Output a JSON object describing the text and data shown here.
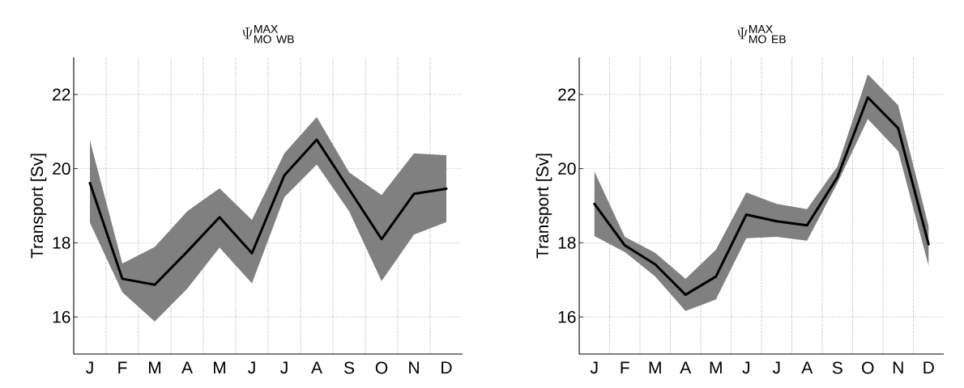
{
  "chart_data": [
    {
      "type": "line",
      "title": "\\Psi^{\\mathsf{MAX}}_{\\mathsf{MO\\ WB}}",
      "ylabel": "Transport [Sv]",
      "categories": [
        "J",
        "F",
        "M",
        "A",
        "M",
        "J",
        "J",
        "A",
        "S",
        "O",
        "N",
        "D"
      ],
      "series": [
        {
          "color": "#000000",
          "values": [
            19.61,
            17.03,
            16.87,
            17.76,
            18.69,
            17.72,
            19.82,
            20.78,
            19.44,
            18.1,
            19.32,
            19.46
          ],
          "lower": [
            18.54,
            16.67,
            15.88,
            16.76,
            17.87,
            16.91,
            19.23,
            20.11,
            18.85,
            16.97,
            18.22,
            18.56
          ],
          "upper": [
            20.76,
            17.44,
            17.89,
            18.85,
            19.47,
            18.62,
            20.41,
            21.39,
            19.9,
            19.29,
            20.41,
            20.36
          ]
        }
      ],
      "ylim": [
        15,
        23
      ],
      "yticks": [
        16,
        18,
        20,
        22
      ],
      "grid": true,
      "line_style": "solid",
      "marker": "none"
    },
    {
      "type": "line",
      "title": "\\Psi^{\\mathsf{MAX}}_{\\mathsf{MO\\ EB}}",
      "ylabel": "Transport [Sv]",
      "categories": [
        "J",
        "F",
        "M",
        "A",
        "M",
        "J",
        "J",
        "A",
        "S",
        "O",
        "N",
        "D"
      ],
      "series": [
        {
          "color": "#000000",
          "values": [
            19.05,
            17.93,
            17.42,
            16.6,
            17.09,
            18.76,
            18.58,
            18.47,
            19.77,
            21.92,
            21.09,
            17.96
          ],
          "lower": [
            18.18,
            17.75,
            17.09,
            16.16,
            16.47,
            18.12,
            18.16,
            18.06,
            19.61,
            21.34,
            20.47,
            17.38
          ],
          "upper": [
            19.92,
            18.16,
            17.73,
            17.03,
            17.81,
            19.36,
            19.05,
            18.91,
            20.06,
            22.54,
            21.71,
            18.45
          ]
        }
      ],
      "ylim": [
        15,
        23
      ],
      "yticks": [
        16,
        18,
        20,
        22
      ],
      "grid": true,
      "line_style": "solid",
      "marker": "none"
    }
  ]
}
